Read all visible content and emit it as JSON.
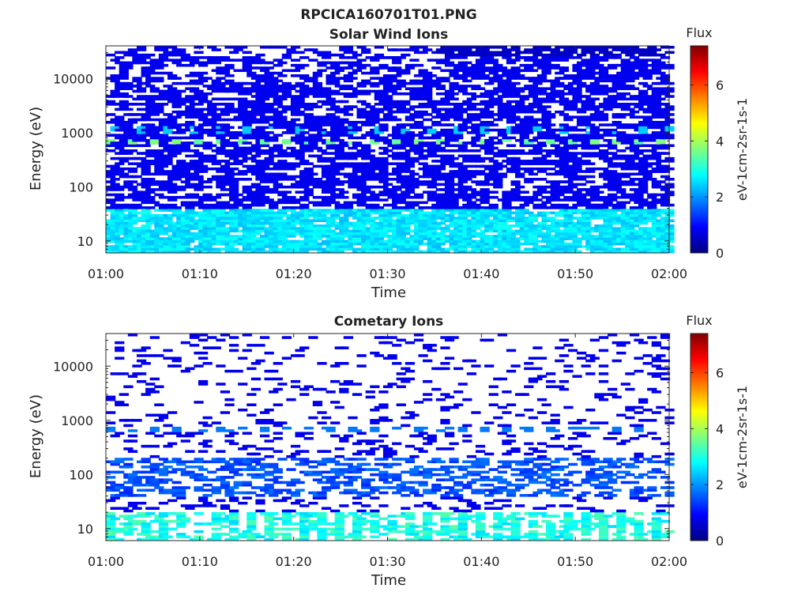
{
  "figure": {
    "title": "RPCICA160701T01.PNG"
  },
  "chart_data": [
    {
      "type": "heatmap",
      "title": "Solar Wind Ions",
      "xlabel": "Time",
      "ylabel": "Energy (eV)",
      "x_ticks": [
        "01:00",
        "01:10",
        "01:20",
        "01:30",
        "01:40",
        "01:50",
        "02:00"
      ],
      "x_range": [
        "01:00",
        "02:00"
      ],
      "y_scale": "log",
      "y_ticks": [
        10,
        100,
        1000,
        10000
      ],
      "y_range": [
        6,
        40000
      ],
      "colorbar": {
        "title": "Flux",
        "label": "eV-1cm-2sr-1s-1",
        "ticks": [
          0,
          2,
          4,
          6
        ],
        "range": [
          0,
          7.4
        ],
        "colormap": "jet"
      },
      "features": [
        {
          "energy_eV": 700,
          "flux_approx": 3.5,
          "note": "periodic stripes near 700 eV"
        },
        {
          "energy_eV": 1100,
          "flux_approx": 2.5
        },
        {
          "energy_range_eV": [
            6,
            40
          ],
          "flux_approx": 2.5
        },
        {
          "energy_range_eV": [
            50,
            40000
          ],
          "flux_approx": 0.8
        },
        {
          "time_range": [
            "01:35",
            "02:00"
          ],
          "energy_range_eV": [
            25000,
            40000
          ],
          "flux_approx": 0.6
        }
      ]
    },
    {
      "type": "heatmap",
      "title": "Cometary Ions",
      "xlabel": "Time",
      "ylabel": "Energy (eV)",
      "x_ticks": [
        "01:00",
        "01:10",
        "01:20",
        "01:30",
        "01:40",
        "01:50",
        "02:00"
      ],
      "x_range": [
        "01:00",
        "02:00"
      ],
      "y_scale": "log",
      "y_ticks": [
        10,
        100,
        1000,
        10000
      ],
      "y_range": [
        6,
        40000
      ],
      "colorbar": {
        "title": "Flux",
        "label": "eV-1cm-2sr-1s-1",
        "ticks": [
          0,
          2,
          4,
          6
        ],
        "range": [
          0,
          7.4
        ],
        "colormap": "jet"
      },
      "features": [
        {
          "energy_eV": 700,
          "flux_approx": 2.0
        },
        {
          "energy_range_eV": [
            40,
            200
          ],
          "flux_approx": 1.5
        },
        {
          "energy_range_eV": [
            6,
            20
          ],
          "flux_approx": 3.0,
          "note": "low-energy stripes"
        },
        {
          "energy_range_eV": [
            1000,
            30000
          ],
          "flux_approx": 0.5,
          "note": "sparse"
        }
      ]
    }
  ]
}
